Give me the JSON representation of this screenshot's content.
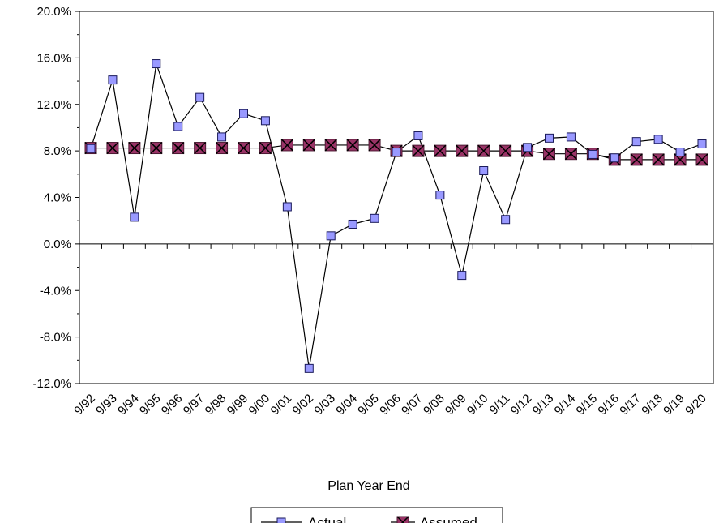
{
  "chart_data": {
    "type": "line",
    "title": "",
    "xlabel": "Plan Year End",
    "ylabel": "",
    "categories": [
      "9/92",
      "9/93",
      "9/94",
      "9/95",
      "9/96",
      "9/97",
      "9/98",
      "9/99",
      "9/00",
      "9/01",
      "9/02",
      "9/03",
      "9/04",
      "9/05",
      "9/06",
      "9/07",
      "9/08",
      "9/09",
      "9/10",
      "9/11",
      "9/12",
      "9/13",
      "9/14",
      "9/15",
      "9/16",
      "9/17",
      "9/18",
      "9/19",
      "9/20"
    ],
    "ylim": [
      -12,
      20
    ],
    "yticks": [
      20,
      16,
      12,
      8,
      4,
      0,
      -4,
      -8,
      -12
    ],
    "ytick_labels": [
      "20.0%",
      "16.0%",
      "12.0%",
      "8.0%",
      "4.0%",
      "0.0%",
      "-4.0%",
      "-8.0%",
      "-12.0%"
    ],
    "grid": false,
    "legend_position": "bottom",
    "series": [
      {
        "name": "Actual",
        "color": "#9999ff",
        "marker": "square",
        "values": [
          8.2,
          14.1,
          2.3,
          15.5,
          10.1,
          12.6,
          9.2,
          11.2,
          10.6,
          3.2,
          -10.7,
          0.7,
          1.7,
          2.2,
          7.9,
          9.3,
          4.2,
          -2.7,
          6.3,
          2.1,
          8.3,
          9.1,
          9.2,
          7.7,
          7.4,
          8.8,
          9.0,
          7.9,
          8.6
        ]
      },
      {
        "name": "Assumed",
        "color": "#993366",
        "marker": "x-square",
        "values": [
          8.25,
          8.25,
          8.25,
          8.25,
          8.25,
          8.25,
          8.25,
          8.25,
          8.25,
          8.5,
          8.5,
          8.5,
          8.5,
          8.5,
          8.0,
          8.0,
          8.0,
          8.0,
          8.0,
          8.0,
          8.0,
          7.75,
          7.75,
          7.75,
          7.25,
          7.25,
          7.25,
          7.25,
          7.25
        ]
      }
    ]
  }
}
